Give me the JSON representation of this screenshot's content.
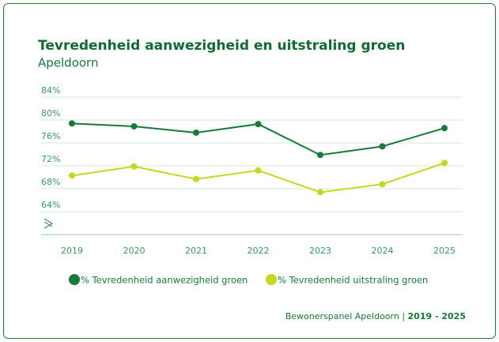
{
  "chart_data": {
    "type": "line",
    "title": "Tevredenheid aanwezigheid en uitstraling groen",
    "subtitle": "Apeldoorn",
    "categories": [
      "2019",
      "2020",
      "2021",
      "2022",
      "2023",
      "2024",
      "2025"
    ],
    "series": [
      {
        "name": "% Tevredenheid aanwezigheid groen",
        "color": "#167a38",
        "values": [
          79.4,
          78.9,
          77.8,
          79.3,
          73.9,
          75.4,
          78.6
        ]
      },
      {
        "name": "% Tevredenheid uitstraling groen",
        "color": "#c5d81c",
        "values": [
          70.3,
          71.9,
          69.7,
          71.2,
          67.4,
          68.8,
          72.5
        ]
      }
    ],
    "ylim": [
      60,
      84
    ],
    "yticks": [
      {
        "value": 64,
        "label": "64%"
      },
      {
        "value": 68,
        "label": "68%"
      },
      {
        "value": 72,
        "label": "72%"
      },
      {
        "value": 76,
        "label": "76%"
      },
      {
        "value": 80,
        "label": "80%"
      },
      {
        "value": 84,
        "label": "84%"
      }
    ],
    "grid": true,
    "source": "Bewonerspanel Apeldoorn |",
    "period": "2019 - 2025"
  }
}
